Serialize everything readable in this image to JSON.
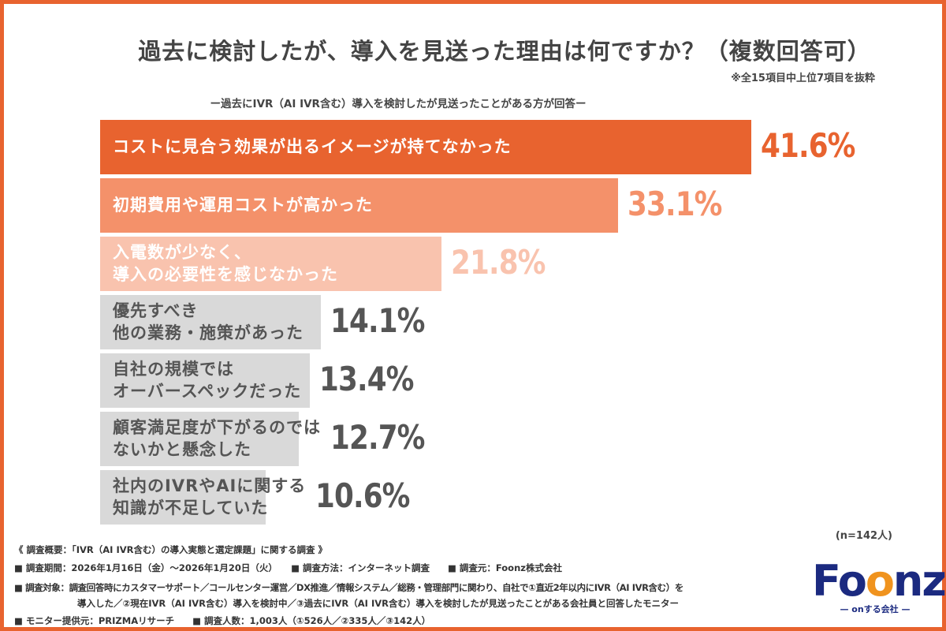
{
  "chart_data": {
    "type": "bar",
    "orientation": "horizontal",
    "title": "過去に検討したが、導入を見送った理由は何ですか？（複数回答可）",
    "note": "※全15項目中上位7項目を抜粋",
    "subtitle": "ー過去にIVR（AI IVR含む）導入を検討したが見送ったことがある方が回答ー",
    "categories": [
      [
        "コストに見合う効果が出るイメージが持てなかった"
      ],
      [
        "初期費用や運用コストが高かった"
      ],
      [
        "入電数が少なく、",
        "導入の必要性を感じなかった"
      ],
      [
        "優先すべき",
        "他の業務・施策があった"
      ],
      [
        "自社の規模では",
        "オーバースペックだった"
      ],
      [
        "顧客満足度が下がるのでは",
        "ないかと懸念した"
      ],
      [
        "社内のIVRやAIに関する",
        "知識が不足していた"
      ]
    ],
    "values": [
      41.6,
      33.1,
      21.8,
      14.1,
      13.4,
      12.7,
      10.6
    ],
    "value_labels": [
      "41.6%",
      "33.1%",
      "21.8%",
      "14.1%",
      "13.4%",
      "12.7%",
      "10.6%"
    ],
    "colors": [
      "#E8632F",
      "#F4916A",
      "#F9C3AE",
      "#D9D9D9",
      "#D9D9D9",
      "#D9D9D9",
      "#D9D9D9"
    ],
    "value_colors": [
      "#E8632F",
      "#F4916A",
      "#F9C3AE",
      "#555555",
      "#555555",
      "#555555",
      "#555555"
    ],
    "sample": "(n=142人)"
  },
  "footer": {
    "line1": "《 調査概要：「IVR（AI IVR含む）の導入実態と選定課題」に関する調査 》",
    "line2": "■ 調査期間：2026年1月16日（金）～2026年1月20日（火）　　■ 調査方法：インターネット調査　　■ 調査元：Foonz株式会社",
    "line3": "■ 調査対象：調査回答時にカスタマーサポート／コールセンター運営／DX推進／情報システム／総務・管理部門に関わり、自社で①直近2年以内にIVR（AI IVR含む）を",
    "line4": "導入した／②現在IVR（AI IVR含む）導入を検討中／③過去にIVR（AI IVR含む）導入を検討したが見送ったことがある会社員と回答したモニター",
    "line5": "■ モニター提供元：PRIZMAリサーチ　　■ 調査人数：1,003人（①526人／②335人／③142人）"
  },
  "logo": {
    "word_a": "Fo",
    "word_b": "o",
    "word_c": "nz",
    "tagline": "— onする会社 —"
  }
}
